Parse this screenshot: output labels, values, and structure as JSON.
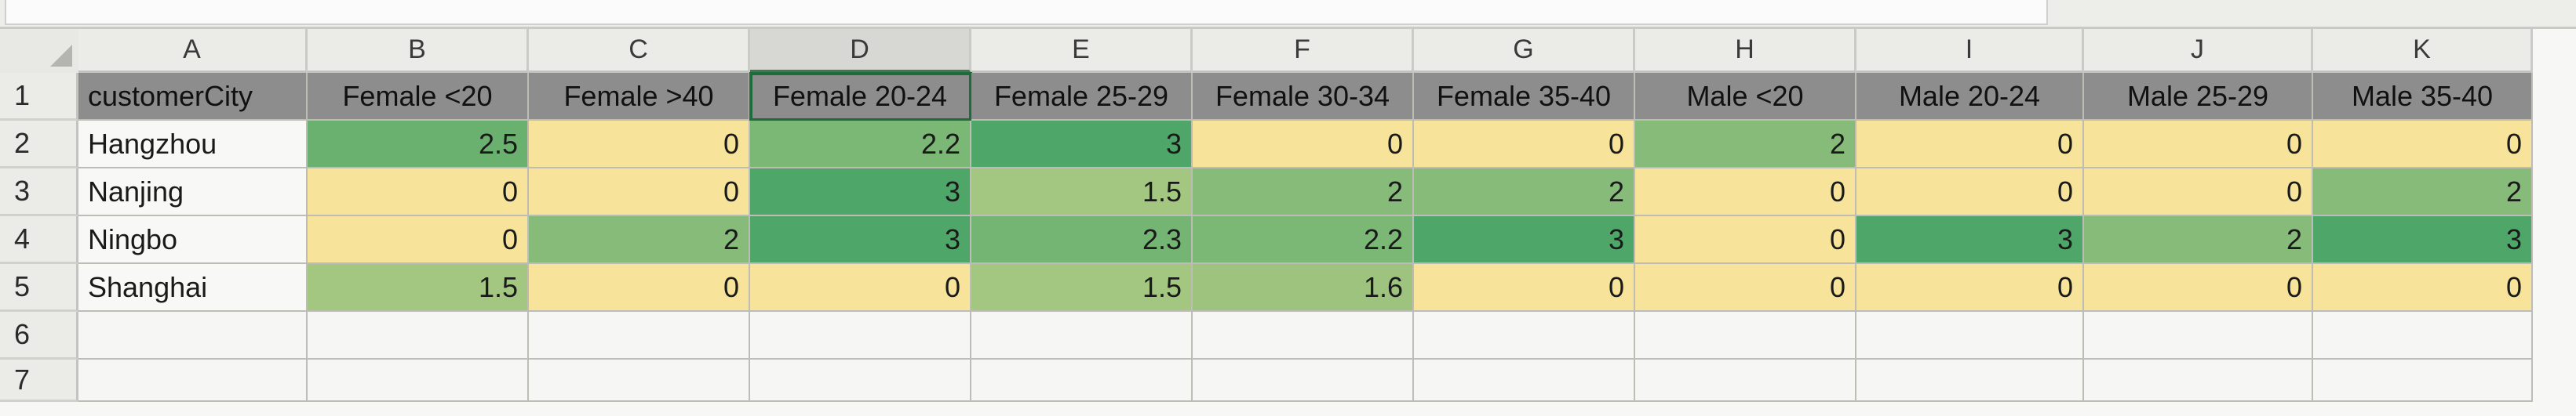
{
  "sheet": {
    "columns": [
      "A",
      "B",
      "C",
      "D",
      "E",
      "F",
      "G",
      "H",
      "I",
      "J",
      "K"
    ],
    "rows": [
      "1",
      "2",
      "3",
      "4",
      "5",
      "6",
      "7"
    ],
    "header_row": [
      "customerCity",
      "Female <20",
      "Female >40",
      "Female 20-24",
      "Female 25-29",
      "Female 30-34",
      "Female 35-40",
      "Male <20",
      "Male 20-24",
      "Male 25-29",
      "Male 35-40"
    ],
    "data_rows": [
      {
        "city": "Hangzhou",
        "values": [
          "2.5",
          "0",
          "2.2",
          "3",
          "0",
          "0",
          "2",
          "0",
          "0",
          "0"
        ]
      },
      {
        "city": "Nanjing",
        "values": [
          "0",
          "0",
          "3",
          "1.5",
          "2",
          "2",
          "0",
          "0",
          "0",
          "2"
        ]
      },
      {
        "city": "Ningbo",
        "values": [
          "0",
          "2",
          "3",
          "2.3",
          "2.2",
          "3",
          "0",
          "3",
          "2",
          "3"
        ]
      },
      {
        "city": "Shanghai",
        "values": [
          "1.5",
          "0",
          "0",
          "1.5",
          "1.6",
          "0",
          "0",
          "0",
          "0",
          "0"
        ]
      }
    ],
    "active_column": "D",
    "active_cell": "D1"
  },
  "colors": {
    "header_fill": "#8d8d8d",
    "scale_low": "#f7e49a",
    "scale_high": "#4ea768",
    "grid": "#bdbdb5"
  }
}
